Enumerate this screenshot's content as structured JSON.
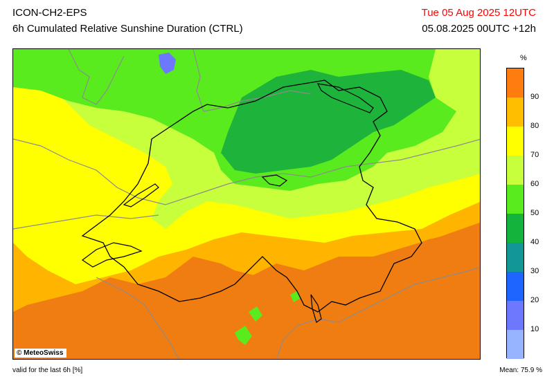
{
  "header": {
    "model": "ICON-CH2-EPS",
    "product": "6h Cumulated Relative Sunshine Duration (CTRL)",
    "valid_time": "Tue 05 Aug 2025 12UTC",
    "run_time": "05.08.2025 00UTC +12h"
  },
  "map": {
    "copyright": "© MeteoSwiss"
  },
  "legend": {
    "unit": "%",
    "ticks": [
      "90",
      "80",
      "70",
      "60",
      "50",
      "40",
      "30",
      "20",
      "10"
    ],
    "colors": [
      "#ff7d0f",
      "#ffbe00",
      "#ffff00",
      "#c8ff3c",
      "#5aeb1e",
      "#14b43c",
      "#129696",
      "#1e64ff",
      "#6e78ff",
      "#96b4ff"
    ]
  },
  "footer": {
    "validity": "valid for the last 6h [%]",
    "mean": "Mean:  75.9 %"
  }
}
